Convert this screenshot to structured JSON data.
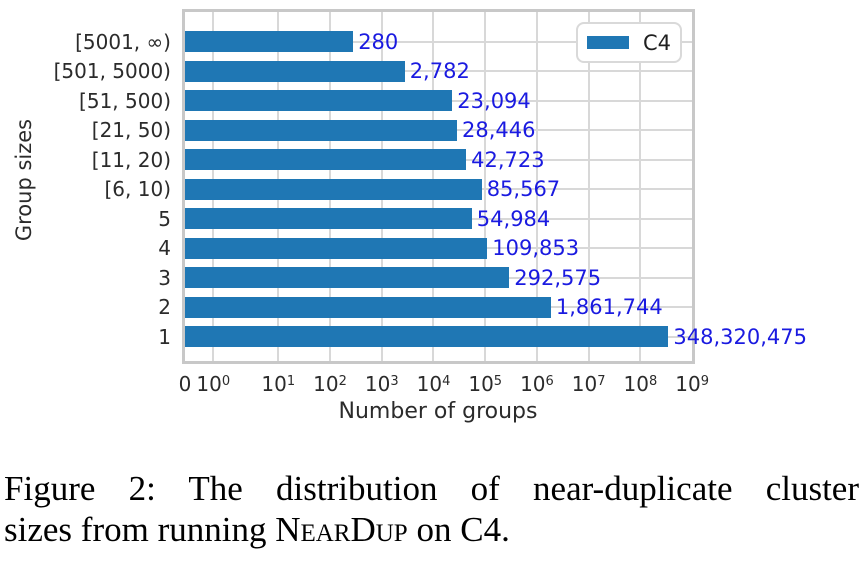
{
  "chart_data": {
    "type": "bar",
    "orientation": "horizontal",
    "title": "",
    "xlabel": "Number of groups",
    "ylabel": "Group sizes",
    "x_scale": "symlog",
    "xlim": [
      0,
      1000000000
    ],
    "grid": true,
    "x_ticks": [
      "0",
      "10^0",
      "10^1",
      "10^2",
      "10^3",
      "10^4",
      "10^5",
      "10^6",
      "10^7",
      "10^8",
      "10^9"
    ],
    "categories": [
      "[5001, ∞)",
      "[501, 5000)",
      "[51, 500)",
      "[21, 50)",
      "[11, 20)",
      "[6, 10)",
      "5",
      "4",
      "3",
      "2",
      "1"
    ],
    "values": [
      280,
      2782,
      23094,
      28446,
      42723,
      85567,
      54984,
      109853,
      292575,
      1861744,
      348320475
    ],
    "value_labels": [
      "280",
      "2,782",
      "23,094",
      "28,446",
      "42,723",
      "85,567",
      "54,984",
      "109,853",
      "292,575",
      "1,861,744",
      "348,320,475"
    ],
    "legend": {
      "position": "upper right",
      "entries": [
        {
          "label": "C4",
          "color": "#1f77b4"
        }
      ]
    },
    "colors": {
      "bar": "#1f77b4",
      "value_label": "#1a1ae0",
      "grid": "#d8d8d8",
      "frame": "#c8c8c8",
      "text": "#2b2b2b"
    }
  },
  "caption": {
    "line1": "Figure 2: The distribution of near-duplicate cluster",
    "line2_before": "sizes from running ",
    "line2_smallcaps": "NearDup",
    "line2_after": " on C4."
  }
}
